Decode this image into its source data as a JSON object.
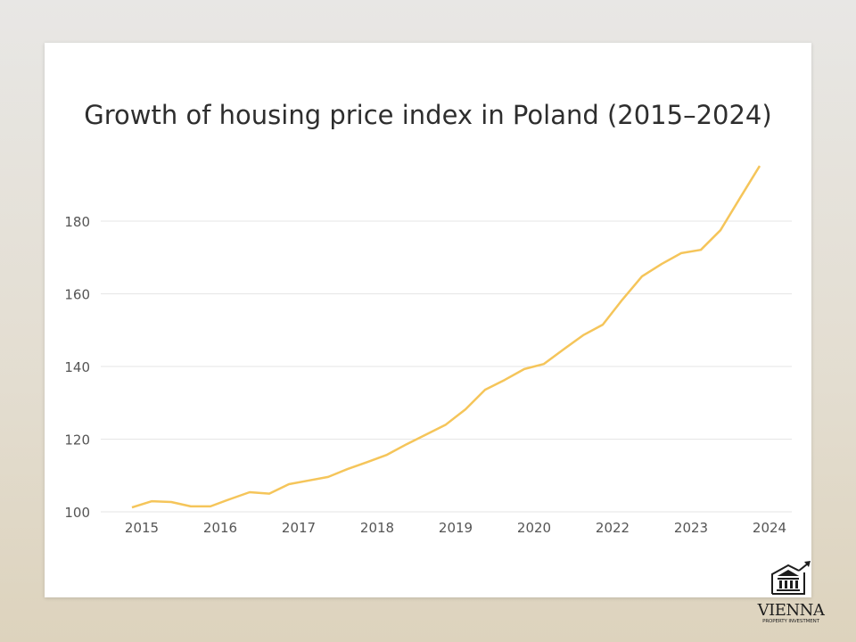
{
  "chart_data": {
    "type": "line",
    "title": "Growth of housing price index in Poland (2015–2024)",
    "xlabel": "",
    "ylabel": "",
    "ylim": [
      100,
      180
    ],
    "y_ticks": [
      100,
      120,
      140,
      160,
      180
    ],
    "x_tick_labels": [
      "2015",
      "2016",
      "2017",
      "2018",
      "2019",
      "2020",
      "2022",
      "2023",
      "2024"
    ],
    "grid": "horizontal",
    "line_color": "#f5c55a",
    "values": [
      101.2,
      102.9,
      102.7,
      101.5,
      101.5,
      103.5,
      105.4,
      105.0,
      107.6,
      108.6,
      109.6,
      111.8,
      113.7,
      115.7,
      118.6,
      121.3,
      124.0,
      128.2,
      133.6,
      136.3,
      139.3,
      140.7,
      144.7,
      148.6,
      151.5,
      158.4,
      164.8,
      168.2,
      171.2,
      172.1,
      177.5,
      186.4,
      195.2
    ]
  },
  "logo": {
    "name": "VIENNA",
    "subtitle": "PROPERTY INVESTMENT"
  }
}
